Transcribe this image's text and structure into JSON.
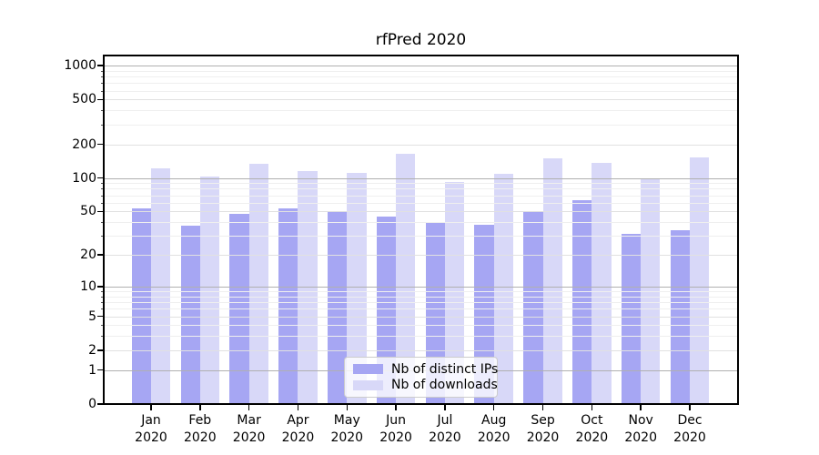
{
  "chart_data": {
    "type": "bar",
    "title": "rfPred 2020",
    "categories": [
      "Jan 2020",
      "Feb 2020",
      "Mar 2020",
      "Apr 2020",
      "May 2020",
      "Jun 2020",
      "Jul 2020",
      "Aug 2020",
      "Sep 2020",
      "Oct 2020",
      "Nov 2020",
      "Dec 2020"
    ],
    "series": [
      {
        "name": "Nb of distinct IPs",
        "color": "#a6a6f3",
        "values": [
          53,
          37,
          48,
          53,
          50,
          45,
          39,
          38,
          49,
          63,
          31,
          34
        ]
      },
      {
        "name": "Nb of downloads",
        "color": "#d8d8f8",
        "values": [
          123,
          103,
          133,
          115,
          112,
          165,
          92,
          108,
          150,
          137,
          100,
          154
        ]
      }
    ],
    "xlabel": "",
    "ylabel": "",
    "yscale": "log10(1+y)",
    "yticks": [
      0,
      1,
      2,
      5,
      10,
      20,
      50,
      100,
      200,
      500,
      1000
    ],
    "ylim": [
      0,
      1230
    ],
    "grid": true,
    "grid_colors": {
      "major": "#b0b0b0",
      "labeled": "#e1e1e1",
      "minor": "#efefef"
    },
    "legend_position": "lower center inside plot"
  }
}
